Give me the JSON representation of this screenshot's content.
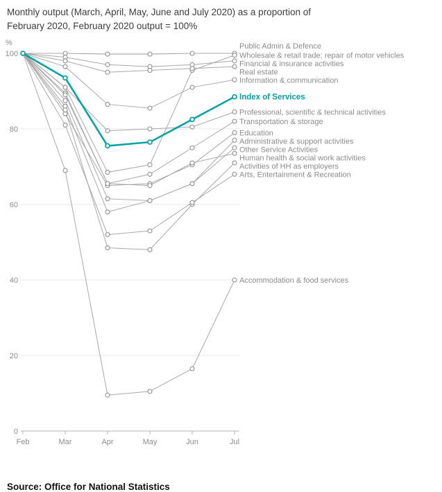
{
  "header": {
    "title": "Monthly output (March, April, May, June and July 2020) as a proportion of February 2020, February 2020 output = 100%"
  },
  "footer": {
    "source": "Source: Office for National Statistics"
  },
  "chart_data": {
    "type": "line",
    "title": "Monthly output (March, April, May, June and July 2020) as a proportion of February 2020, February 2020 output = 100%",
    "ylabel": "%",
    "ylim": [
      0,
      100
    ],
    "y_ticks": [
      0,
      20,
      40,
      60,
      80,
      100
    ],
    "x_categories": [
      "Feb",
      "Mar",
      "Apr",
      "May",
      "Jun",
      "Jul"
    ],
    "grid": true,
    "labels_position": "right",
    "colors": {
      "series_grey": "#a8a8a8",
      "marker_grey": "#8f8f8f",
      "highlight_teal": "#00a3a3",
      "grid": "#e9e9e9",
      "axis": "#b3b3b3",
      "tick_text": "#8c8c8c",
      "label_text": "#8c8c8c"
    },
    "series": [
      {
        "name": "Public Admin & Defence",
        "highlight": false,
        "values": [
          100,
          100,
          99.8,
          99.8,
          100,
          100
        ]
      },
      {
        "name": "Wholesale & retail trade; repair of motor vehicles",
        "highlight": false,
        "values": [
          100,
          91,
          68.5,
          70.5,
          95.5,
          99.5
        ]
      },
      {
        "name": "Financial & insurance activities",
        "highlight": false,
        "values": [
          100,
          99,
          97,
          96.5,
          97,
          98
        ]
      },
      {
        "name": "Real estate",
        "highlight": false,
        "values": [
          100,
          98,
          95,
          95.5,
          96,
          96.5
        ]
      },
      {
        "name": "Information & communication",
        "highlight": false,
        "values": [
          100,
          96.5,
          86.5,
          85.5,
          91,
          93
        ]
      },
      {
        "name": "Index of Services",
        "highlight": true,
        "values": [
          100,
          93.5,
          75.5,
          76.5,
          82.5,
          88.5
        ]
      },
      {
        "name": "Professional, scientific & technical activities",
        "highlight": false,
        "values": [
          100,
          91,
          79.5,
          80,
          80.5,
          84.5
        ]
      },
      {
        "name": "Transportation & storage",
        "highlight": false,
        "values": [
          100,
          89.5,
          65.5,
          68,
          75,
          82
        ]
      },
      {
        "name": "Education",
        "highlight": false,
        "values": [
          100,
          84,
          65,
          65.5,
          70.5,
          79
        ]
      },
      {
        "name": "Administrative & support activities",
        "highlight": false,
        "values": [
          100,
          87.5,
          61.5,
          61,
          65.5,
          77
        ]
      },
      {
        "name": "Other Service Activities",
        "highlight": false,
        "values": [
          100,
          86,
          58,
          61,
          65.5,
          75
        ]
      },
      {
        "name": "Human health & social work activities",
        "highlight": false,
        "values": [
          100,
          89,
          65.5,
          65,
          71,
          73.5
        ]
      },
      {
        "name": "Activities of HH as employers",
        "highlight": false,
        "values": [
          100,
          85,
          48.5,
          48,
          60,
          71
        ]
      },
      {
        "name": "Arts, Entertainment & Recreation",
        "highlight": false,
        "values": [
          100,
          81,
          52,
          53,
          60.5,
          68
        ]
      },
      {
        "name": "Accommodation & food services",
        "highlight": false,
        "values": [
          100,
          69,
          9.5,
          10.5,
          16.5,
          40
        ]
      }
    ]
  }
}
